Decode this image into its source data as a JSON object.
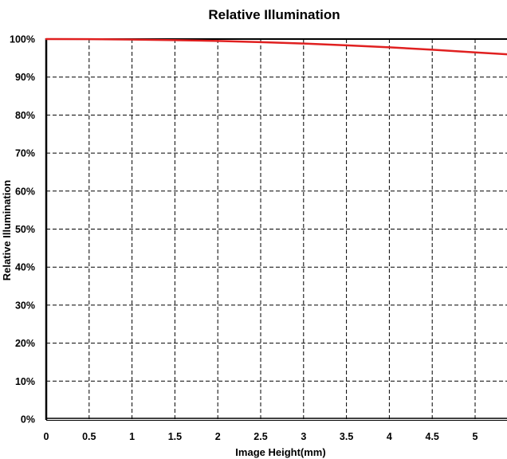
{
  "chart_data": {
    "type": "line",
    "title": "Relative Illumination",
    "xlabel": "Image Height(mm)",
    "ylabel": "Relative Illumination",
    "xlim": [
      0,
      5.4
    ],
    "ylim": [
      0,
      100
    ],
    "x_ticks": [
      0,
      0.5,
      1,
      1.5,
      2,
      2.5,
      3,
      3.5,
      4,
      4.5,
      5
    ],
    "x_tick_labels": [
      "0",
      "0.5",
      "1",
      "1.5",
      "2",
      "2.5",
      "3",
      "3.5",
      "4",
      "4.5",
      "5"
    ],
    "y_ticks": [
      0,
      10,
      20,
      30,
      40,
      50,
      60,
      70,
      80,
      90,
      100
    ],
    "y_tick_labels": [
      "0%",
      "10%",
      "20%",
      "30%",
      "40%",
      "50%",
      "60%",
      "70%",
      "80%",
      "90%",
      "100%"
    ],
    "grid": true,
    "grid_style": "dashed",
    "legend": "none",
    "series": [
      {
        "color": "#e02020",
        "x": [
          0,
          0.5,
          1,
          1.5,
          2,
          2.5,
          3,
          3.5,
          4,
          4.5,
          5,
          5.4
        ],
        "y": [
          100,
          99.97,
          99.88,
          99.72,
          99.5,
          99.2,
          98.82,
          98.36,
          97.82,
          97.2,
          96.5,
          96.0
        ]
      }
    ]
  }
}
